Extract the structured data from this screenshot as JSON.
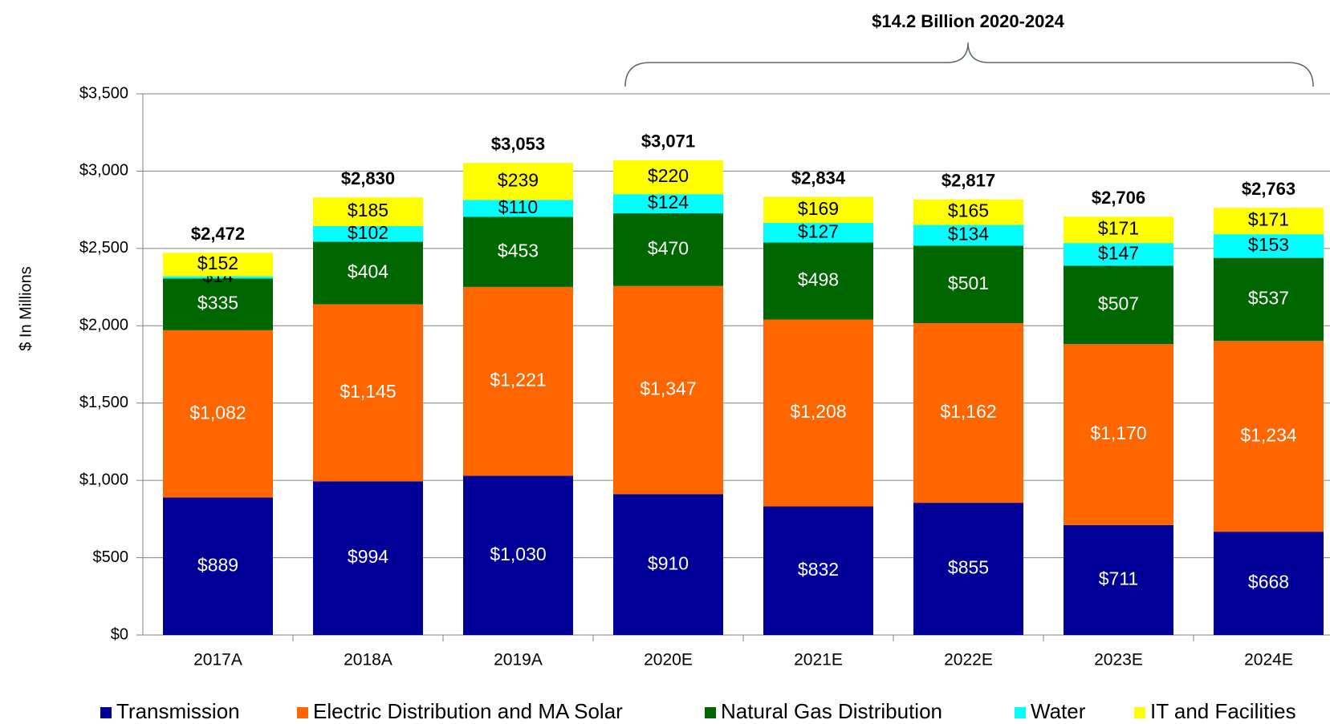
{
  "chart_data": {
    "type": "stacked_bar",
    "annotation": "$14.2 Billion 2020-2024",
    "y_label": "$ In Millions",
    "categories": [
      "2017A",
      "2018A",
      "2019A",
      "2020E",
      "2021E",
      "2022E",
      "2023E",
      "2024E"
    ],
    "series": [
      {
        "name": "Transmission",
        "color": "#000099",
        "values": [
          889,
          994,
          1030,
          910,
          832,
          855,
          711,
          668
        ],
        "value_labels": [
          "$889",
          "$994",
          "$1,030",
          "$910",
          "$832",
          "$855",
          "$711",
          "$668"
        ]
      },
      {
        "name": "Electric Distribution and MA Solar",
        "color": "#ff6600",
        "values": [
          1082,
          1145,
          1221,
          1347,
          1208,
          1162,
          1170,
          1234
        ],
        "value_labels": [
          "$1,082",
          "$1,145",
          "$1,221",
          "$1,347",
          "$1,208",
          "$1,162",
          "$1,170",
          "$1,234"
        ]
      },
      {
        "name": "Natural Gas Distribution",
        "color": "#006600",
        "values": [
          335,
          404,
          453,
          470,
          498,
          501,
          507,
          537
        ],
        "value_labels": [
          "$335",
          "$404",
          "$453",
          "$470",
          "$498",
          "$501",
          "$507",
          "$537"
        ]
      },
      {
        "name": "Water",
        "color": "#00ffff",
        "values": [
          14,
          102,
          110,
          124,
          127,
          134,
          147,
          153
        ],
        "value_labels": [
          "$14",
          "$102",
          "$110",
          "$124",
          "$127",
          "$134",
          "$147",
          "$153"
        ]
      },
      {
        "name": "IT and Facilities",
        "color": "#ffff00",
        "values": [
          152,
          185,
          239,
          220,
          169,
          165,
          171,
          171
        ],
        "value_labels": [
          "$152",
          "$185",
          "$239",
          "$220",
          "$169",
          "$165",
          "$171",
          "$171"
        ]
      }
    ],
    "totals": {
      "values": [
        2472,
        2830,
        3053,
        3071,
        2834,
        2817,
        2706,
        2763
      ],
      "value_labels": [
        "$2,472",
        "$2,830",
        "$3,053",
        "$3,071",
        "$2,834",
        "$2,817",
        "$2,706",
        "$2,763"
      ]
    },
    "ylim": [
      0,
      3500
    ],
    "yticks": [
      {
        "value": 0,
        "label": "$0"
      },
      {
        "value": 500,
        "label": "$500"
      },
      {
        "value": 1000,
        "label": "$1,000"
      },
      {
        "value": 1500,
        "label": "$1,500"
      },
      {
        "value": 2000,
        "label": "$2,000"
      },
      {
        "value": 2500,
        "label": "$2,500"
      },
      {
        "value": 3000,
        "label": "$3,000"
      },
      {
        "value": 3500,
        "label": "$3,500"
      }
    ],
    "grid": true,
    "legend": "bottom"
  }
}
